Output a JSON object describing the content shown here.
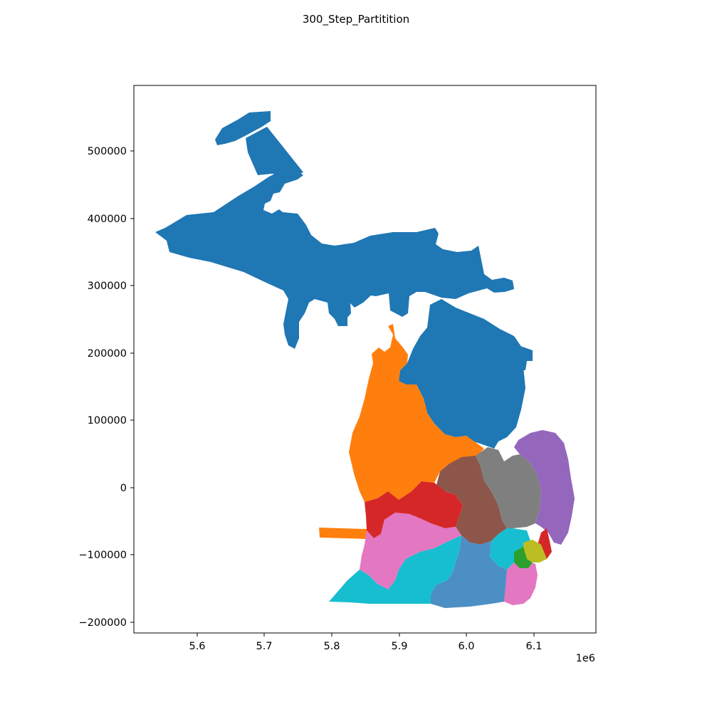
{
  "figure": {
    "title": "300_Step_Partitition"
  },
  "chart_data": {
    "type": "choropleth",
    "title": "300_Step_Partitition",
    "xlabel": "",
    "ylabel": "",
    "xlim": [
      5.508,
      6.192
    ],
    "ylim": [
      -217000,
      600000
    ],
    "x_offset_label": "1e6",
    "x_ticks": [
      {
        "value": 5.6,
        "label": "5.6"
      },
      {
        "value": 5.7,
        "label": "5.7"
      },
      {
        "value": 5.8,
        "label": "5.8"
      },
      {
        "value": 5.9,
        "label": "5.9"
      },
      {
        "value": 6.0,
        "label": "6.0"
      },
      {
        "value": 6.1,
        "label": "6.1"
      }
    ],
    "y_ticks": [
      {
        "value": 500000,
        "label": "500000"
      },
      {
        "value": 400000,
        "label": "400000"
      },
      {
        "value": 300000,
        "label": "300000"
      },
      {
        "value": 200000,
        "label": "200000"
      },
      {
        "value": 100000,
        "label": "100000"
      },
      {
        "value": 0,
        "label": "0"
      },
      {
        "value": -100000,
        "label": "−100000"
      },
      {
        "value": -200000,
        "label": "−200000"
      }
    ],
    "grid": false,
    "legend": "none",
    "district_colors": {
      "blue": "#1f77b4",
      "orange": "#ff7f0e",
      "brown": "#8c564b",
      "gray": "#7f7f7f",
      "purple": "#9467bd",
      "red": "#d62728",
      "pink": "#e377c2",
      "cyan": "#17becf",
      "steel": "#4c8fc4",
      "olive": "#bcbd22",
      "green": "#2ca02c"
    }
  }
}
